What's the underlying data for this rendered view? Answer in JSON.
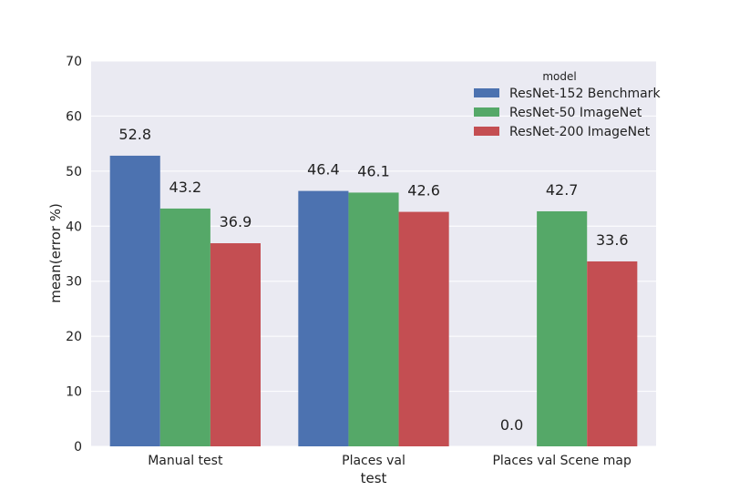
{
  "chart_data": {
    "type": "bar",
    "categories": [
      "Manual test",
      "Places val",
      "Places val Scene map"
    ],
    "series": [
      {
        "name": "ResNet-152 Benchmark",
        "values": [
          52.8,
          46.4,
          0.0
        ],
        "color": "#4c72b0"
      },
      {
        "name": "ResNet-50 ImageNet",
        "values": [
          43.2,
          46.1,
          42.7
        ],
        "color": "#55a868"
      },
      {
        "name": "ResNet-200 ImageNet",
        "values": [
          36.9,
          42.6,
          33.6
        ],
        "color": "#c44e52"
      }
    ],
    "title": "",
    "xlabel": "test",
    "ylabel": "mean(error %)",
    "ylim": [
      0,
      70
    ],
    "yticks": [
      0,
      10,
      20,
      30,
      40,
      50,
      60,
      70
    ],
    "value_format_decimals": 1,
    "grid": true,
    "background": "#eaeaf2",
    "legend": {
      "title": "model",
      "position": "top-right"
    }
  }
}
